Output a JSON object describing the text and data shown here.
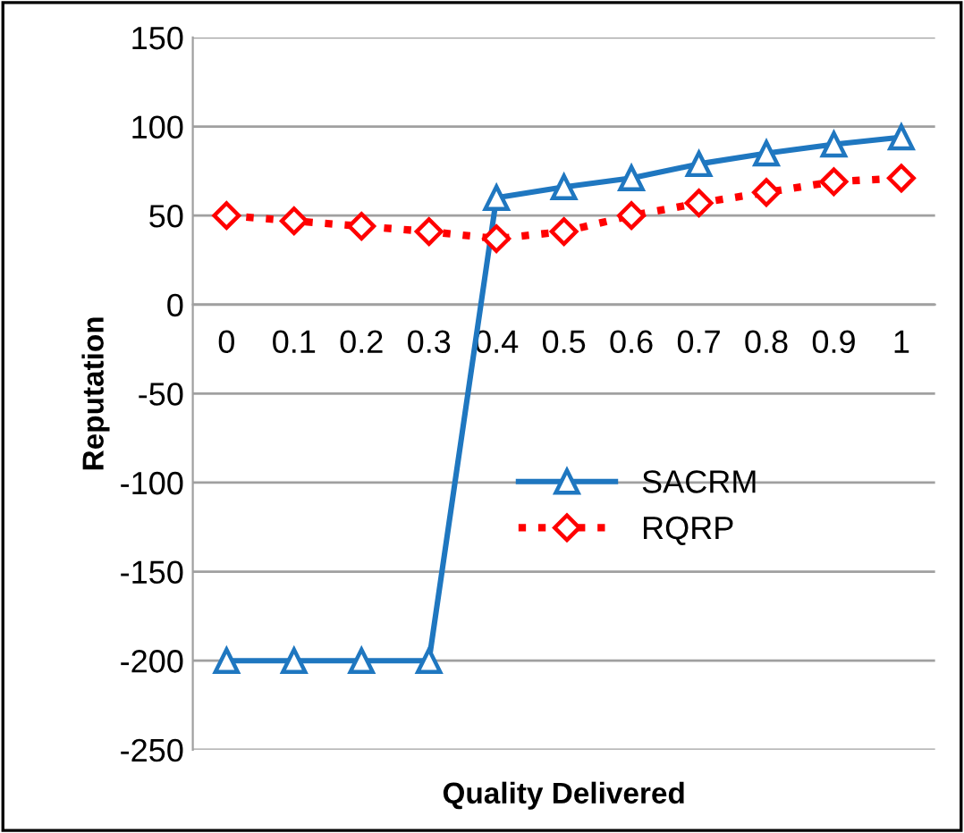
{
  "chart_data": {
    "type": "line",
    "xlabel": "Quality Delivered",
    "ylabel": "Reputation",
    "categories": [
      "0",
      "0.1",
      "0.2",
      "0.3",
      "0.4",
      "0.5",
      "0.6",
      "0.7",
      "0.8",
      "0.9",
      "1"
    ],
    "series": [
      {
        "name": "SACRM",
        "color": "#1f77c0",
        "marker": "triangle",
        "line_style": "solid",
        "values": [
          -200,
          -200,
          -200,
          -200,
          60,
          66,
          71,
          79,
          85,
          90,
          94
        ]
      },
      {
        "name": "RQRP",
        "color": "#ff0000",
        "marker": "diamond",
        "line_style": "dotted",
        "values": [
          50,
          47,
          44,
          41,
          37,
          41,
          50,
          57,
          63,
          69,
          71
        ]
      }
    ],
    "ylim": [
      -250,
      150
    ],
    "yticks": [
      -250,
      -200,
      -150,
      -100,
      -50,
      0,
      50,
      100,
      150
    ],
    "grid": "y",
    "legend": "center"
  }
}
